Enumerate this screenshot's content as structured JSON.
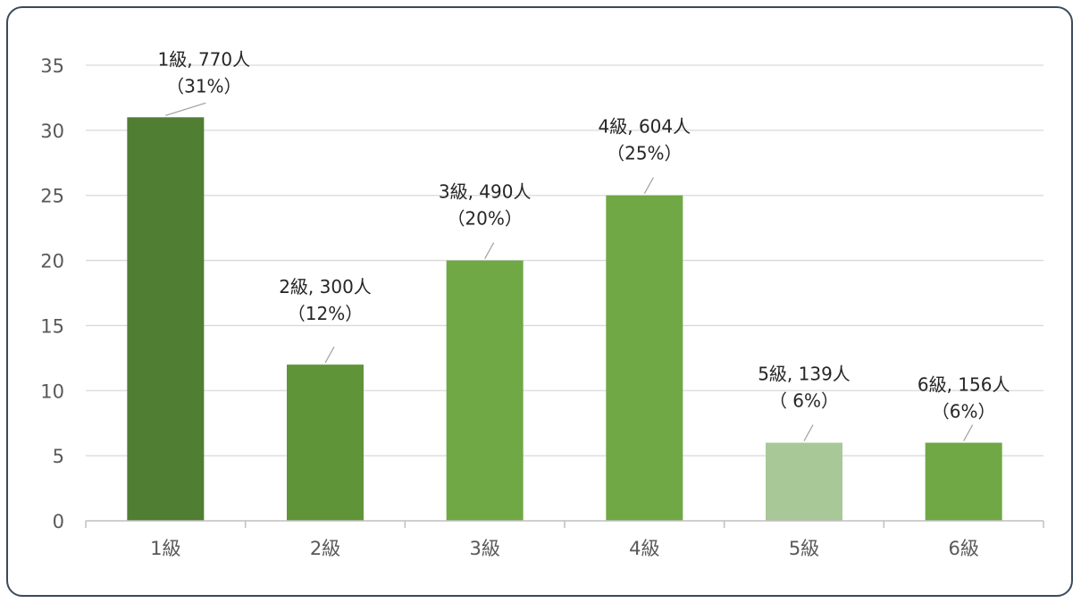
{
  "chart_data": {
    "type": "bar",
    "categories": [
      "1級",
      "2級",
      "3級",
      "4級",
      "5級",
      "6級"
    ],
    "values": [
      31,
      12,
      20,
      25,
      6,
      6
    ],
    "data_labels": [
      {
        "line1": "1級, 770人",
        "line2": "（31%）"
      },
      {
        "line1": "2級, 300人",
        "line2": "（12%）"
      },
      {
        "line1": "3級, 490人",
        "line2": "（20%）"
      },
      {
        "line1": "4級, 604人",
        "line2": "（25%）"
      },
      {
        "line1": "5級, 139人",
        "line2": "（ 6%）"
      },
      {
        "line1": "6級, 156人",
        "line2": "（6%）"
      }
    ],
    "bar_colors": [
      "#507e32",
      "#5f9438",
      "#6fa845",
      "#6fa845",
      "#a9c897",
      "#6fa845"
    ],
    "ylim": [
      0,
      35
    ],
    "yticks": [
      0,
      5,
      10,
      15,
      20,
      25,
      30,
      35
    ],
    "grid": true,
    "grid_color": "#d9d9d9",
    "axis_color": "#bfbfbf",
    "leader_line_color": "#a6a6a6"
  }
}
